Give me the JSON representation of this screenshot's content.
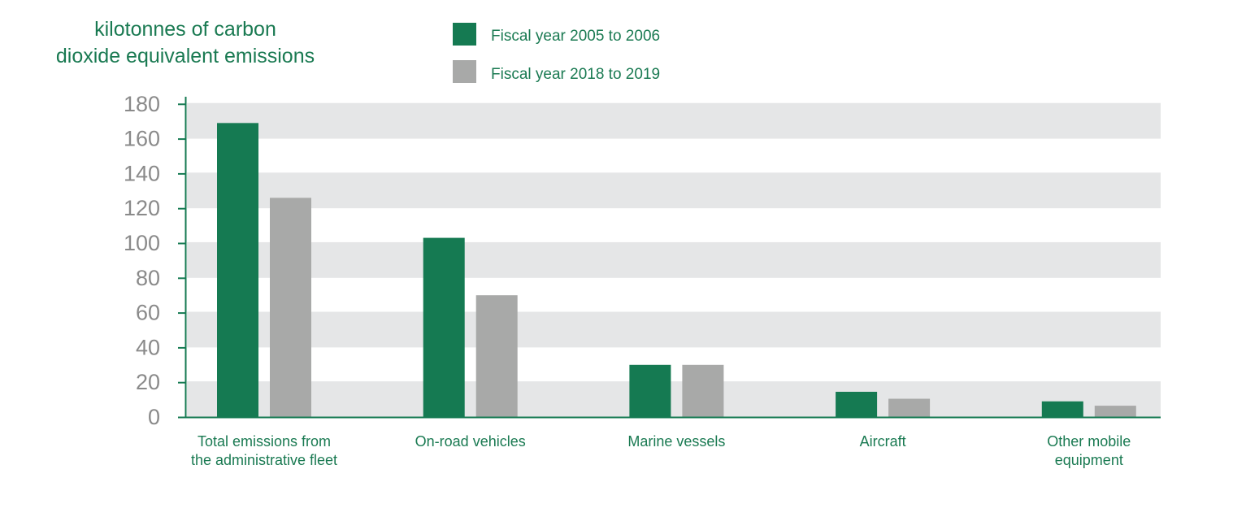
{
  "chart_data": {
    "type": "bar",
    "ylabel_lines": [
      "kilotonnes of carbon",
      "dioxide equivalent emissions"
    ],
    "ylim": [
      0,
      180
    ],
    "yticks": [
      "0",
      "20",
      "40",
      "60",
      "80",
      "100",
      "120",
      "140",
      "160",
      "180"
    ],
    "grid": "alternating horizontal bands",
    "legend_position": "top",
    "categories": [
      [
        "Total emissions from",
        "the administrative fleet"
      ],
      [
        "On-road vehicles"
      ],
      [
        "Marine vessels"
      ],
      [
        "Aircraft"
      ],
      [
        "Other mobile",
        "equipment"
      ]
    ],
    "series": [
      {
        "name": "Fiscal year 2005 to 2006",
        "color": "#157a52",
        "values": [
          169,
          103,
          30,
          14.5,
          9
        ]
      },
      {
        "name": "Fiscal year 2018 to 2019",
        "color": "#a8a9a8",
        "values": [
          126,
          70,
          30,
          10.5,
          6.5
        ]
      }
    ]
  }
}
